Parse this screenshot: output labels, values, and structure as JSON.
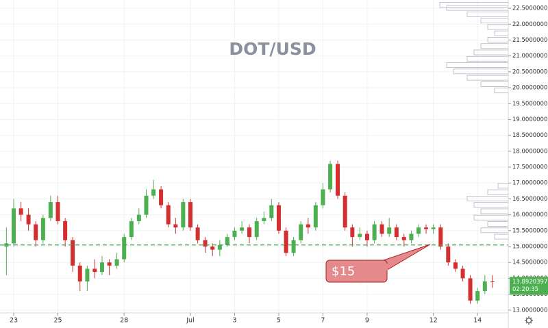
{
  "chart_data": {
    "type": "candlestick",
    "title": "DOT/USD",
    "up_color": "#4caf50",
    "down_color": "#d32f2f",
    "grid": true,
    "xlim": [
      -0.62,
      22.39
    ],
    "xticks": [
      {
        "value": 0,
        "label": "23"
      },
      {
        "value": 2,
        "label": "25"
      },
      {
        "value": 5,
        "label": "28"
      },
      {
        "value": 8,
        "label": "Jul"
      },
      {
        "value": 10,
        "label": "3"
      },
      {
        "value": 12,
        "label": "5"
      },
      {
        "value": 14,
        "label": "7"
      },
      {
        "value": 16,
        "label": "9"
      },
      {
        "value": 19,
        "label": "12"
      },
      {
        "value": 21,
        "label": "14"
      }
    ],
    "ylim": [
      12.91,
      22.76
    ],
    "yticks": [
      {
        "value": 13.0,
        "label": "13.00000000"
      },
      {
        "value": 13.5,
        "label": "13.50000000"
      },
      {
        "value": 14.0,
        "label": "14.00000000"
      },
      {
        "value": 14.5,
        "label": "14.50000000"
      },
      {
        "value": 15.0,
        "label": "15.00000000"
      },
      {
        "value": 15.5,
        "label": "15.50000000"
      },
      {
        "value": 16.0,
        "label": "16.00000000"
      },
      {
        "value": 16.5,
        "label": "16.50000000"
      },
      {
        "value": 17.0,
        "label": "17.00000000"
      },
      {
        "value": 17.5,
        "label": "17.50000000"
      },
      {
        "value": 18.0,
        "label": "18.00000000"
      },
      {
        "value": 18.5,
        "label": "18.50000000"
      },
      {
        "value": 19.0,
        "label": "19.00000000"
      },
      {
        "value": 19.5,
        "label": "19.50000000"
      },
      {
        "value": 20.0,
        "label": "20.00000000"
      },
      {
        "value": 20.5,
        "label": "20.50000000"
      },
      {
        "value": 21.0,
        "label": "21.00000000"
      },
      {
        "value": 21.5,
        "label": "21.50000000"
      },
      {
        "value": 22.0,
        "label": "22.00000000"
      },
      {
        "value": 22.5,
        "label": "22.50000000"
      }
    ],
    "x": [
      -0.33,
      0,
      0.33,
      0.67,
      1,
      1.33,
      1.67,
      2,
      2.33,
      2.67,
      3,
      3.33,
      3.67,
      4,
      4.33,
      4.67,
      5,
      5.33,
      5.67,
      6,
      6.33,
      6.67,
      7,
      7.33,
      7.67,
      8,
      8.33,
      8.67,
      9,
      9.33,
      9.67,
      10,
      10.33,
      10.67,
      11,
      11.33,
      11.67,
      12,
      12.33,
      12.67,
      13,
      13.33,
      13.67,
      14,
      14.33,
      14.67,
      15,
      15.33,
      15.67,
      16,
      16.33,
      16.67,
      17,
      17.33,
      17.67,
      18,
      18.33,
      18.67,
      19,
      19.33,
      19.67,
      20,
      20.33,
      20.67,
      21,
      21.33,
      21.67
    ],
    "open": [
      15.0,
      15.1,
      16.2,
      16.0,
      15.7,
      15.2,
      15.9,
      16.4,
      15.8,
      15.2,
      14.4,
      13.9,
      14.3,
      14.2,
      14.5,
      14.4,
      14.6,
      15.3,
      15.8,
      16.0,
      16.6,
      16.8,
      16.3,
      15.7,
      15.6,
      16.4,
      15.6,
      15.2,
      15.0,
      14.9,
      15.05,
      15.3,
      15.5,
      15.6,
      15.3,
      15.8,
      15.9,
      16.3,
      15.5,
      14.8,
      15.2,
      15.7,
      15.6,
      16.3,
      16.8,
      17.6,
      16.6,
      15.6,
      15.3,
      15.4,
      15.2,
      15.7,
      15.4,
      15.6,
      15.3,
      15.2,
      15.4,
      15.6,
      15.55,
      15.6,
      15.0,
      14.5,
      14.3,
      14.0,
      13.3,
      13.6,
      13.9
    ],
    "high": [
      15.6,
      16.5,
      16.4,
      16.2,
      15.8,
      16.0,
      16.6,
      16.6,
      15.9,
      15.3,
      14.5,
      14.4,
      14.6,
      14.7,
      14.6,
      14.8,
      15.4,
      15.9,
      16.2,
      16.8,
      17.1,
      16.9,
      16.4,
      15.9,
      16.5,
      16.5,
      15.7,
      15.3,
      15.1,
      15.2,
      15.4,
      15.6,
      15.8,
      15.7,
      15.9,
      16.1,
      16.5,
      16.4,
      15.6,
      15.3,
      15.8,
      15.9,
      16.4,
      17.0,
      17.7,
      17.7,
      16.7,
      15.7,
      15.6,
      15.5,
      15.8,
      15.8,
      15.9,
      15.7,
      15.4,
      15.5,
      15.7,
      15.7,
      15.7,
      15.7,
      15.1,
      14.6,
      14.4,
      14.1,
      13.7,
      14.1,
      14.1
    ],
    "low": [
      14.1,
      15.0,
      15.8,
      15.5,
      15.0,
      15.1,
      15.8,
      15.7,
      15.0,
      14.2,
      13.6,
      13.6,
      14.0,
      14.1,
      14.1,
      14.3,
      14.5,
      15.2,
      15.7,
      15.9,
      16.5,
      16.2,
      15.6,
      15.4,
      15.5,
      15.5,
      15.1,
      14.8,
      14.7,
      14.7,
      15.0,
      15.2,
      15.4,
      15.1,
      15.2,
      15.7,
      15.8,
      15.4,
      14.7,
      14.7,
      15.1,
      15.4,
      15.5,
      16.2,
      16.7,
      16.5,
      15.5,
      15.0,
      15.2,
      15.0,
      15.1,
      15.3,
      15.3,
      15.2,
      15.0,
      15.1,
      15.3,
      15.4,
      15.4,
      14.9,
      14.4,
      14.2,
      13.9,
      13.2,
      13.2,
      13.5,
      13.7
    ],
    "close": [
      15.1,
      16.2,
      16.0,
      15.7,
      15.2,
      15.9,
      16.4,
      15.8,
      15.2,
      14.4,
      13.9,
      14.3,
      14.2,
      14.5,
      14.4,
      14.6,
      15.3,
      15.8,
      16.0,
      16.6,
      16.8,
      16.3,
      15.7,
      15.6,
      16.4,
      15.6,
      15.2,
      15.0,
      14.9,
      15.05,
      15.3,
      15.5,
      15.6,
      15.3,
      15.8,
      15.9,
      16.3,
      15.5,
      14.8,
      15.2,
      15.7,
      15.6,
      16.3,
      16.8,
      17.6,
      16.6,
      15.6,
      15.3,
      15.4,
      15.2,
      15.7,
      15.4,
      15.6,
      15.3,
      15.2,
      15.4,
      15.6,
      15.55,
      15.6,
      15.0,
      14.5,
      14.3,
      14.0,
      13.3,
      13.6,
      13.9,
      13.89
    ],
    "reference_line": 15.05,
    "annotation": "$15",
    "last_price": {
      "value": 13.89203972,
      "label": "13.89203972"
    },
    "countdown": "02:20:35",
    "volume_profile": {
      "levels": [
        22.6,
        22.5,
        22.3,
        22.1,
        21.9,
        21.7,
        21.5,
        21.3,
        21.1,
        20.9,
        20.7,
        20.5,
        20.3,
        20.1,
        19.9,
        16.9,
        16.7,
        16.5,
        16.3,
        16.1,
        15.9,
        15.7,
        15.5,
        15.3
      ],
      "values": [
        100,
        90,
        60,
        40,
        30,
        20,
        30,
        40,
        50,
        60,
        90,
        80,
        60,
        40,
        20,
        15,
        30,
        60,
        50,
        40,
        50,
        30,
        40,
        20
      ],
      "color": "#b2b5be"
    }
  }
}
